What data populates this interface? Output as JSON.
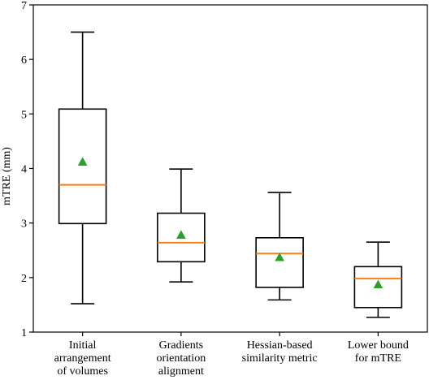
{
  "chart_data": {
    "type": "box",
    "ylabel": "mTRE (mm)",
    "ylim": [
      1,
      7
    ],
    "yticks": [
      1,
      2,
      3,
      4,
      5,
      6,
      7
    ],
    "grid": false,
    "categories": [
      [
        "Initial",
        "arrangement",
        "of volumes"
      ],
      [
        "Gradients",
        "orientation",
        "alignment"
      ],
      [
        "Hessian-based",
        "similarity metric"
      ],
      [
        "Lower bound",
        "for mTRE"
      ]
    ],
    "boxes": [
      {
        "whisker_low": 1.52,
        "q1": 2.99,
        "median": 3.7,
        "q3": 5.09,
        "whisker_high": 6.5,
        "mean": 4.12
      },
      {
        "whisker_low": 1.92,
        "q1": 2.29,
        "median": 2.64,
        "q3": 3.18,
        "whisker_high": 3.99,
        "mean": 2.78
      },
      {
        "whisker_low": 1.59,
        "q1": 1.82,
        "median": 2.44,
        "q3": 2.73,
        "whisker_high": 3.56,
        "mean": 2.37
      },
      {
        "whisker_low": 1.27,
        "q1": 1.45,
        "median": 1.98,
        "q3": 2.2,
        "whisker_high": 2.65,
        "mean": 1.87
      }
    ],
    "colors": {
      "box": "#000000",
      "median": "#ff7f0e",
      "mean_marker": "#2ca02c"
    }
  }
}
